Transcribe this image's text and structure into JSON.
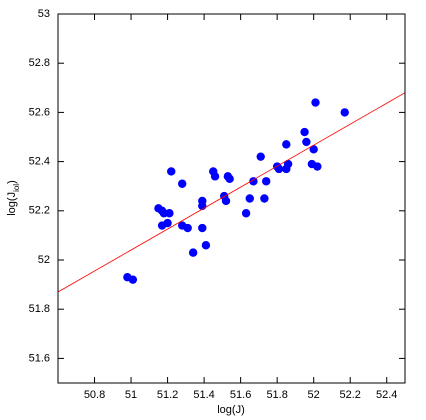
{
  "chart_data": {
    "type": "scatter",
    "xlabel": "log(J)",
    "ylabel_parts": [
      "log(J",
      "iol",
      ")"
    ],
    "xlim": [
      50.6,
      52.5
    ],
    "ylim": [
      51.5,
      53
    ],
    "xticks": [
      50.8,
      51,
      51.2,
      51.4,
      51.6,
      51.8,
      52,
      52.2,
      52.4
    ],
    "yticks": [
      51.6,
      51.8,
      52,
      52.2,
      52.4,
      52.6,
      52.8,
      53
    ],
    "series": [
      {
        "color": "#0000ff",
        "x": [
          50.98,
          51.01,
          51.15,
          51.17,
          51.18,
          51.21,
          51.17,
          51.2,
          51.22,
          51.28,
          51.28,
          51.31,
          51.34,
          51.39,
          51.39,
          51.39,
          51.41,
          51.45,
          51.46,
          51.51,
          51.52,
          51.54,
          51.53,
          51.63,
          51.65,
          51.67,
          51.71,
          51.73,
          51.74,
          51.8,
          51.81,
          51.85,
          51.86,
          51.85,
          51.95,
          51.96,
          51.99,
          52.0,
          52.02,
          52.01,
          52.17
        ],
        "values": [
          51.93,
          51.92,
          52.21,
          52.2,
          52.19,
          52.19,
          52.14,
          52.15,
          52.36,
          52.31,
          52.14,
          52.13,
          52.03,
          52.24,
          52.22,
          52.13,
          52.06,
          52.36,
          52.34,
          52.26,
          52.24,
          52.33,
          52.34,
          52.19,
          52.25,
          52.32,
          52.42,
          52.25,
          52.32,
          52.38,
          52.37,
          52.37,
          52.39,
          52.47,
          52.52,
          52.48,
          52.39,
          52.45,
          52.38,
          52.64,
          52.6
        ]
      },
      {
        "color": "#ff0000",
        "style": "line",
        "x": [
          50.6,
          52.5
        ],
        "values": [
          51.87,
          52.68
        ]
      }
    ]
  }
}
